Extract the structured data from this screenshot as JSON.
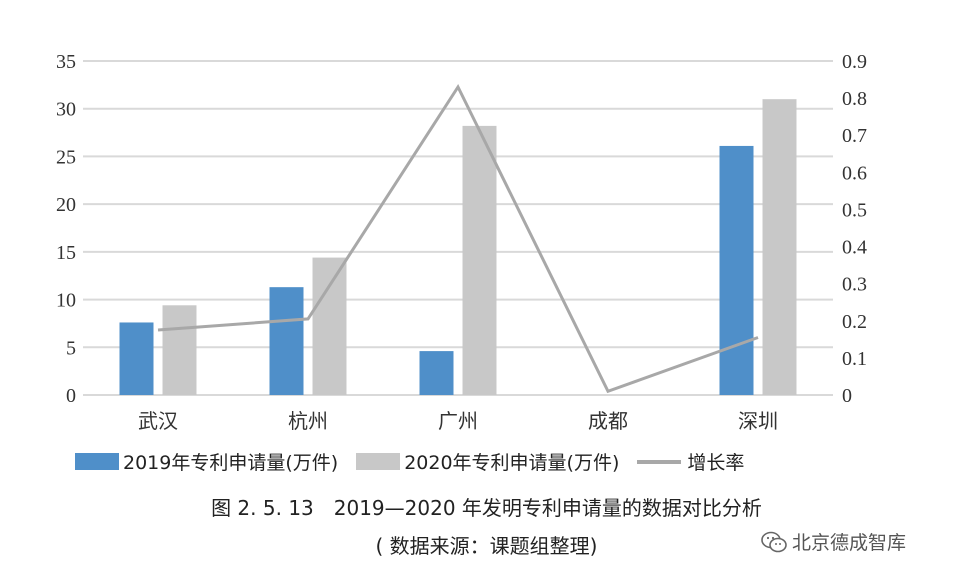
{
  "chart_data": {
    "type": "bar",
    "categories": [
      "武汉",
      "杭州",
      "广州",
      "成都",
      "深圳"
    ],
    "series": [
      {
        "name": "2019年专利申请量(万件)",
        "type": "bar",
        "axis": "left",
        "color": "#4f8fc9",
        "values": [
          7.6,
          11.3,
          4.6,
          null,
          26.1
        ]
      },
      {
        "name": "2020年专利申请量(万件)",
        "type": "bar",
        "axis": "left",
        "color": "#c8c8c8",
        "values": [
          9.4,
          14.4,
          28.2,
          null,
          31.0
        ]
      },
      {
        "name": "增长率",
        "type": "line",
        "axis": "right",
        "color": "#a8a8a8",
        "values": [
          0.175,
          0.205,
          0.83,
          0.01,
          0.155
        ]
      }
    ],
    "y_left": {
      "min": 0,
      "max": 35,
      "ticks": [
        "0",
        "5",
        "10",
        "15",
        "20",
        "25",
        "30",
        "35"
      ]
    },
    "y_right": {
      "min": 0,
      "max": 0.9,
      "ticks": [
        "0",
        "0.1",
        "0.2",
        "0.3",
        "0.4",
        "0.5",
        "0.6",
        "0.7",
        "0.8",
        "0.9"
      ]
    },
    "grid": true,
    "legend_position": "bottom"
  },
  "legend": {
    "item1": "2019年专利申请量(万件)",
    "item2": "2020年专利申请量(万件)",
    "item3": "增长率"
  },
  "caption": {
    "title": "图 2. 5. 13　2019—2020 年发明专利申请量的数据对比分析",
    "source": "( 数据来源：课题组整理)"
  },
  "watermark": {
    "text": "北京德成智库"
  }
}
